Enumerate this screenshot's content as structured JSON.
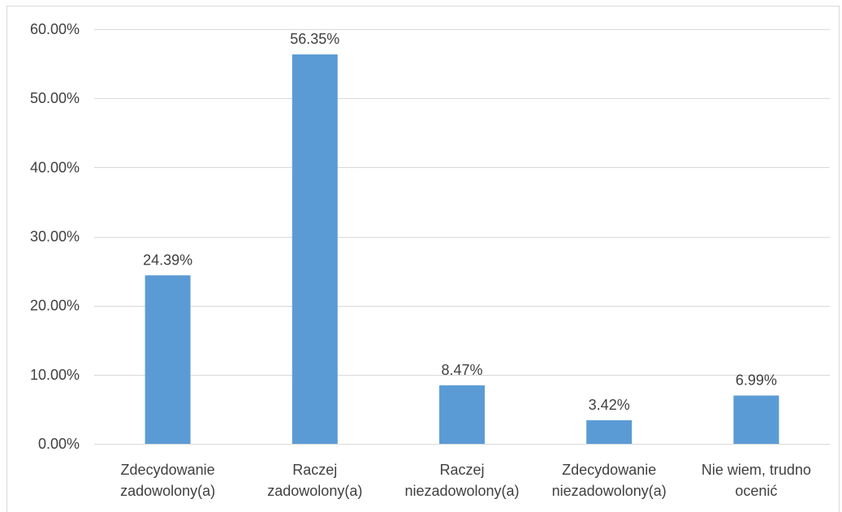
{
  "chart_data": {
    "type": "bar",
    "title": "",
    "xlabel": "",
    "ylabel": "",
    "categories": [
      [
        "Zdecydowanie",
        "zadowolony(a)"
      ],
      [
        "Raczej",
        "zadowolony(a)"
      ],
      [
        "Raczej",
        "niezadowolony(a)"
      ],
      [
        "Zdecydowanie",
        "niezadowolony(a)"
      ],
      [
        "Nie wiem, trudno",
        "ocenić"
      ]
    ],
    "values": [
      24.39,
      56.35,
      8.47,
      3.42,
      6.99
    ],
    "data_labels": [
      "24.39%",
      "56.35%",
      "8.47%",
      "3.42%",
      "6.99%"
    ],
    "ylim": [
      0,
      60
    ],
    "yticks": [
      0,
      10,
      20,
      30,
      40,
      50,
      60
    ],
    "ytick_labels": [
      "0.00%",
      "10.00%",
      "20.00%",
      "30.00%",
      "40.00%",
      "50.00%",
      "60.00%"
    ],
    "grid": true,
    "legend": "none",
    "colors": {
      "bar": "#5b9bd5",
      "grid": "#d9d9d9",
      "axis": "#d9d9d9",
      "text": "#404040"
    }
  }
}
